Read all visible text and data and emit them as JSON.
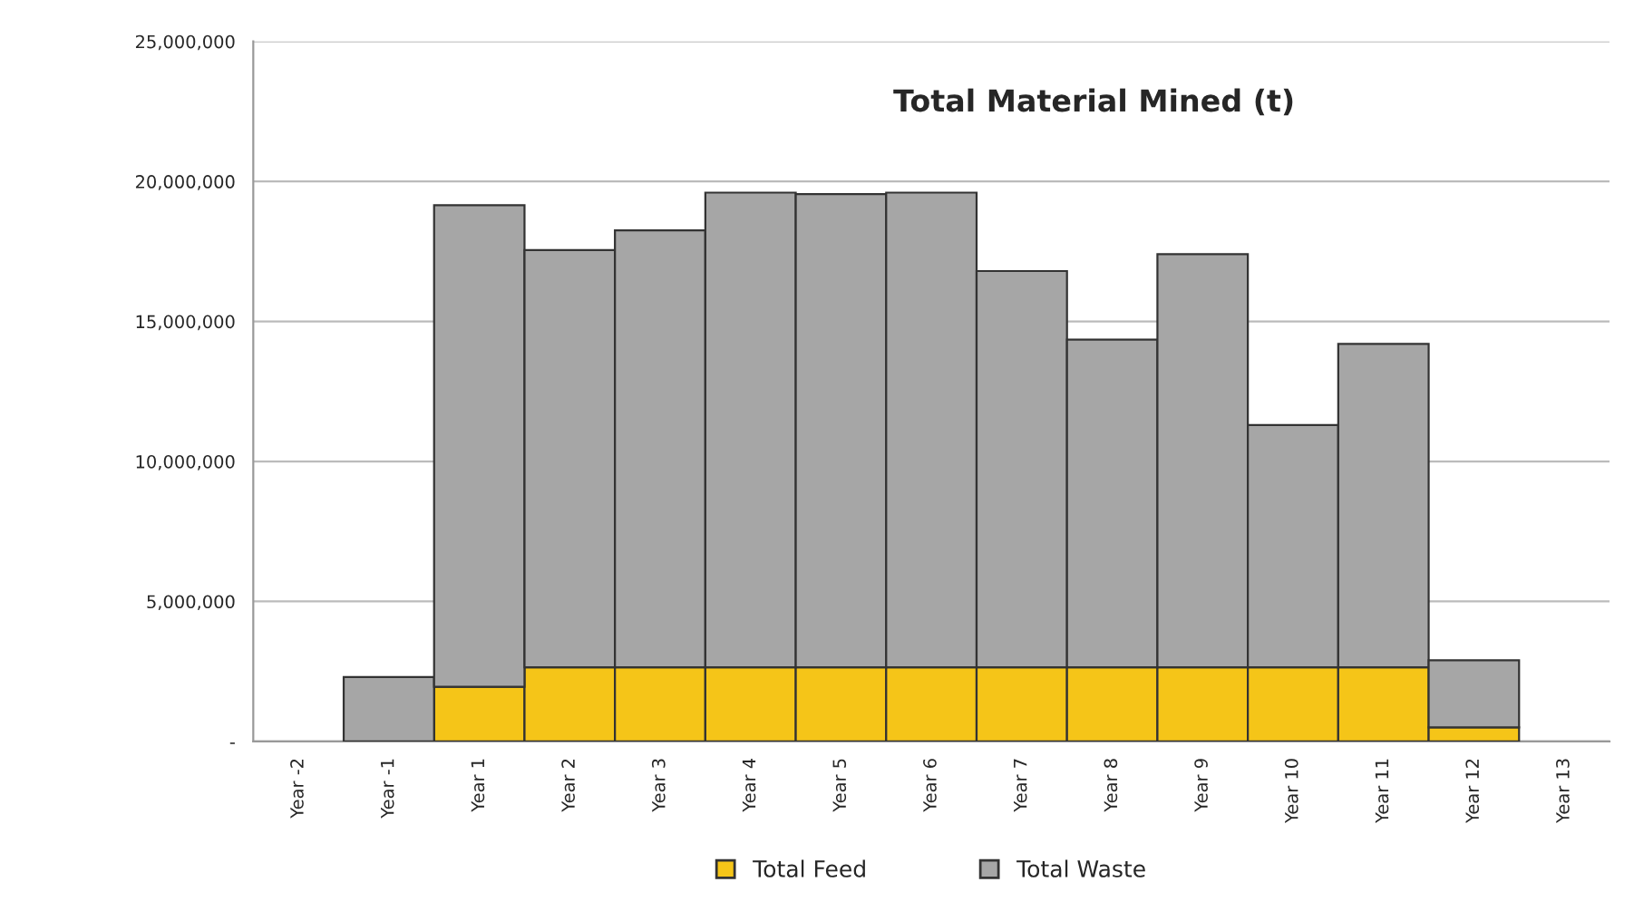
{
  "chart_data": {
    "type": "bar",
    "title": "Total Material Mined (t)",
    "stacked": true,
    "categories": [
      "Year -2",
      "Year -1",
      "Year 1",
      "Year 2",
      "Year 3",
      "Year 4",
      "Year 5",
      "Year 6",
      "Year 7",
      "Year 8",
      "Year 9",
      "Year 10",
      "Year 11",
      "Year 12",
      "Year 13"
    ],
    "series": [
      {
        "name": "Total Feed",
        "color": "#f5c518",
        "values": [
          0,
          0,
          1950000,
          2650000,
          2650000,
          2650000,
          2650000,
          2650000,
          2650000,
          2650000,
          2650000,
          2650000,
          2650000,
          500000,
          0
        ]
      },
      {
        "name": "Total Waste",
        "color": "#a6a6a6",
        "values": [
          0,
          2300000,
          17200000,
          14900000,
          15600000,
          16950000,
          16900000,
          16950000,
          14150000,
          11700000,
          14750000,
          8650000,
          11550000,
          2400000,
          0
        ]
      }
    ],
    "ylim": [
      0,
      25000000
    ],
    "yticks": [
      {
        "value": 0,
        "label": "-"
      },
      {
        "value": 5000000,
        "label": "5,000,000"
      },
      {
        "value": 10000000,
        "label": "10,000,000"
      },
      {
        "value": 15000000,
        "label": "15,000,000"
      },
      {
        "value": 20000000,
        "label": "20,000,000"
      },
      {
        "value": 25000000,
        "label": "25,000,000"
      }
    ],
    "grid": "y",
    "legend": "bottom"
  }
}
